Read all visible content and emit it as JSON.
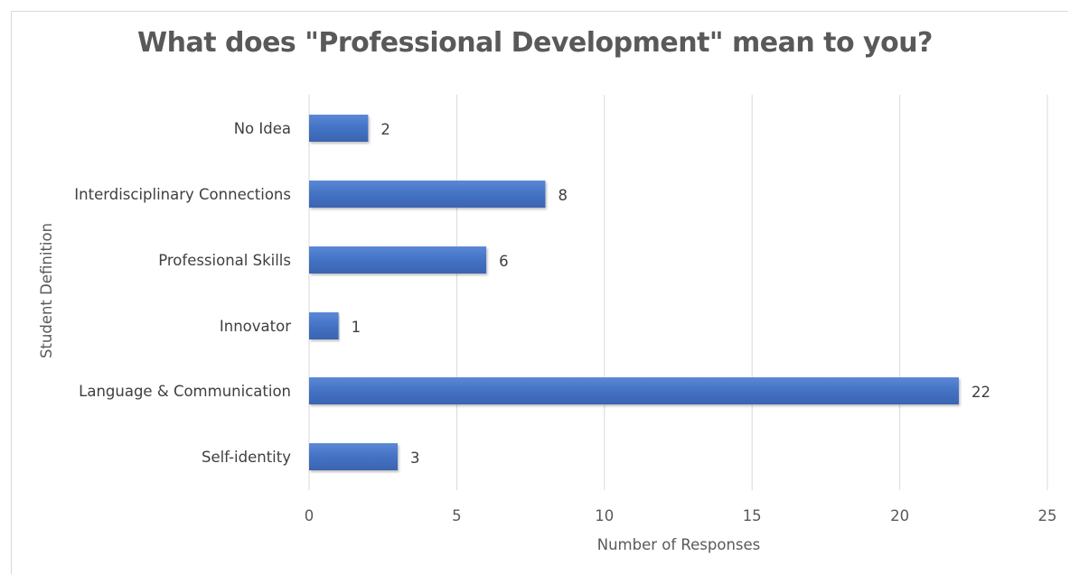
{
  "chart_data": {
    "type": "bar",
    "orientation": "horizontal",
    "title": "What does \"Professional Development\" mean to you?",
    "xlabel": "Number of Responses",
    "ylabel": "Student Definition",
    "categories": [
      "No Idea",
      "Interdisciplinary Connections",
      "Professional Skills",
      "Innovator",
      "Language & Communication",
      "Self-identity"
    ],
    "values": [
      2,
      8,
      6,
      1,
      22,
      3
    ],
    "xlim": [
      0,
      25
    ],
    "xticks": [
      "0",
      "5",
      "10",
      "15",
      "20",
      "25"
    ],
    "grid": "vertical",
    "bar_color": "#4472c4",
    "data_labels": true
  }
}
